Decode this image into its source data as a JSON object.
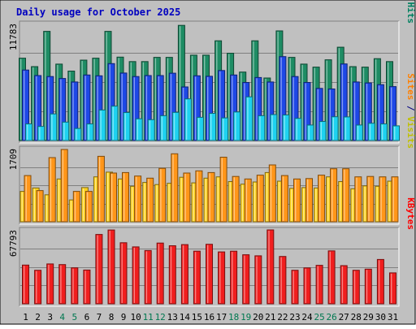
{
  "chart_data": {
    "type": "bar",
    "title": "Daily usage for October 2025",
    "days": [
      "1",
      "2",
      "3",
      "4",
      "5",
      "6",
      "7",
      "8",
      "9",
      "10",
      "11",
      "12",
      "13",
      "14",
      "15",
      "16",
      "17",
      "18",
      "19",
      "20",
      "21",
      "22",
      "23",
      "24",
      "25",
      "26",
      "27",
      "28",
      "29",
      "30",
      "31"
    ],
    "weekend_days": [
      "4",
      "5",
      "11",
      "12",
      "18",
      "19",
      "25",
      "26"
    ],
    "panels": [
      {
        "id": "hits",
        "ymax": 11783,
        "ymax_label": "11783",
        "side_label_parts": [
          {
            "text": "Pages",
            "color": "#00c0e0"
          },
          {
            "text": " / ",
            "color": "#000080"
          },
          {
            "text": "Files",
            "color": "#0040ff"
          },
          {
            "text": " / ",
            "color": "#000080"
          },
          {
            "text": "Hits",
            "color": "#008060"
          }
        ],
        "series": [
          {
            "name": "Hits",
            "color": "#1e8c64",
            "values": [
              8300,
              7450,
              11000,
              7700,
              7000,
              8100,
              8300,
              11000,
              8400,
              7950,
              7950,
              8380,
              8380,
              11600,
              8600,
              8600,
              10050,
              8800,
              6900,
              10050,
              6300,
              11050,
              8380,
              7700,
              7400,
              8130,
              9400,
              7450,
              7400,
              8250,
              7950
            ]
          },
          {
            "name": "Files",
            "color": "#1e48e6",
            "values": [
              7100,
              6550,
              6450,
              6250,
              5900,
              6600,
              6520,
              7750,
              6800,
              6450,
              6550,
              6550,
              6780,
              5400,
              6520,
              6470,
              7050,
              6600,
              5850,
              6350,
              5900,
              8450,
              6450,
              5850,
              5250,
              5200,
              7720,
              5900,
              5800,
              5630,
              5430
            ]
          },
          {
            "name": "Pages",
            "color": "#1ed2f0",
            "values": [
              1680,
              1420,
              2680,
              1860,
              1220,
              1680,
              3080,
              3470,
              2820,
              2190,
              2100,
              2500,
              2840,
              4200,
              2340,
              2740,
              2280,
              2880,
              4400,
              2500,
              2620,
              2580,
              2230,
              1560,
              1920,
              2400,
              2380,
              1560,
              1740,
              1680,
              1480
            ]
          }
        ]
      },
      {
        "id": "visits",
        "ymax": 1709,
        "ymax_label": "1709",
        "side_label_parts": [
          {
            "text": "Sites",
            "color": "#ff8000"
          },
          {
            "text": " / ",
            "color": "#000080"
          },
          {
            "text": "Visits",
            "color": "#c0c000"
          }
        ],
        "series": [
          {
            "name": "Visits",
            "color": "#ffd21e",
            "values": [
              710,
              790,
              630,
              1000,
              510,
              800,
              1050,
              1160,
              1000,
              830,
              920,
              870,
              900,
              1040,
              910,
              1020,
              1050,
              940,
              880,
              930,
              1150,
              950,
              780,
              800,
              790,
              1050,
              940,
              770,
              840,
              830,
              950
            ]
          },
          {
            "name": "Sites",
            "color": "#ff9619",
            "values": [
              1080,
              730,
              1500,
              1690,
              710,
              710,
              1530,
              1140,
              1150,
              1070,
              1020,
              1250,
              1590,
              1140,
              1190,
              1150,
              1510,
              1060,
              1000,
              1090,
              1330,
              1080,
              1000,
              1010,
              1090,
              1240,
              1240,
              1050,
              1060,
              1050,
              1050
            ]
          }
        ]
      },
      {
        "id": "kbytes",
        "ymax": 67793,
        "ymax_label": "67793",
        "side_label_parts": [
          {
            "text": "KBytes",
            "color": "#ff0000"
          }
        ],
        "series": [
          {
            "name": "KBytes",
            "color": "#f01e1e",
            "values": [
              35500,
              30800,
              36600,
              36000,
              33000,
              31000,
              63600,
              67700,
              56000,
              52200,
              48900,
              55700,
              53300,
              54300,
              48300,
              54600,
              47600,
              48300,
              45000,
              44000,
              67800,
              43400,
              30800,
              32900,
              35300,
              48600,
              35000,
              30800,
              31800,
              40700,
              28400
            ]
          }
        ]
      }
    ]
  }
}
